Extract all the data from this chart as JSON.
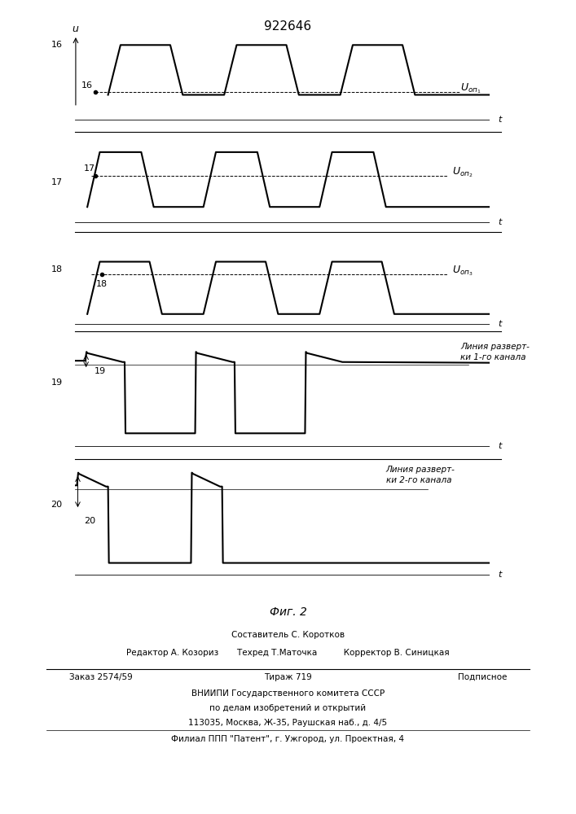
{
  "title": "922646",
  "fig_label": "Фиг. 2",
  "background_color": "#f5f5f0",
  "panel_labels": [
    "16",
    "17",
    "18",
    "19",
    "20"
  ],
  "signal_labels": [
    "Uоп₁",
    "Uоп₂",
    "Uоп₃",
    "Линия разверт-\nки 1-го канала",
    "Линия разверт-\nки 2-го канала"
  ],
  "footer_lines": [
    "Составитель С. Коротков",
    "Редактор А. Козориз       Техред Т.Маточка          Корректор В. Синицкая",
    "Заказ 2574/59                Тираж 719                  Подписное",
    "ВНИИПИ Государственного комитета СССР",
    "по делам изобретений и открытий",
    "113035, Москва, Ж-35, Раушская наб., д. 4/5",
    "Филиал ППП \"Патент\", г. Ужгород, ул. Проектная, 4"
  ]
}
